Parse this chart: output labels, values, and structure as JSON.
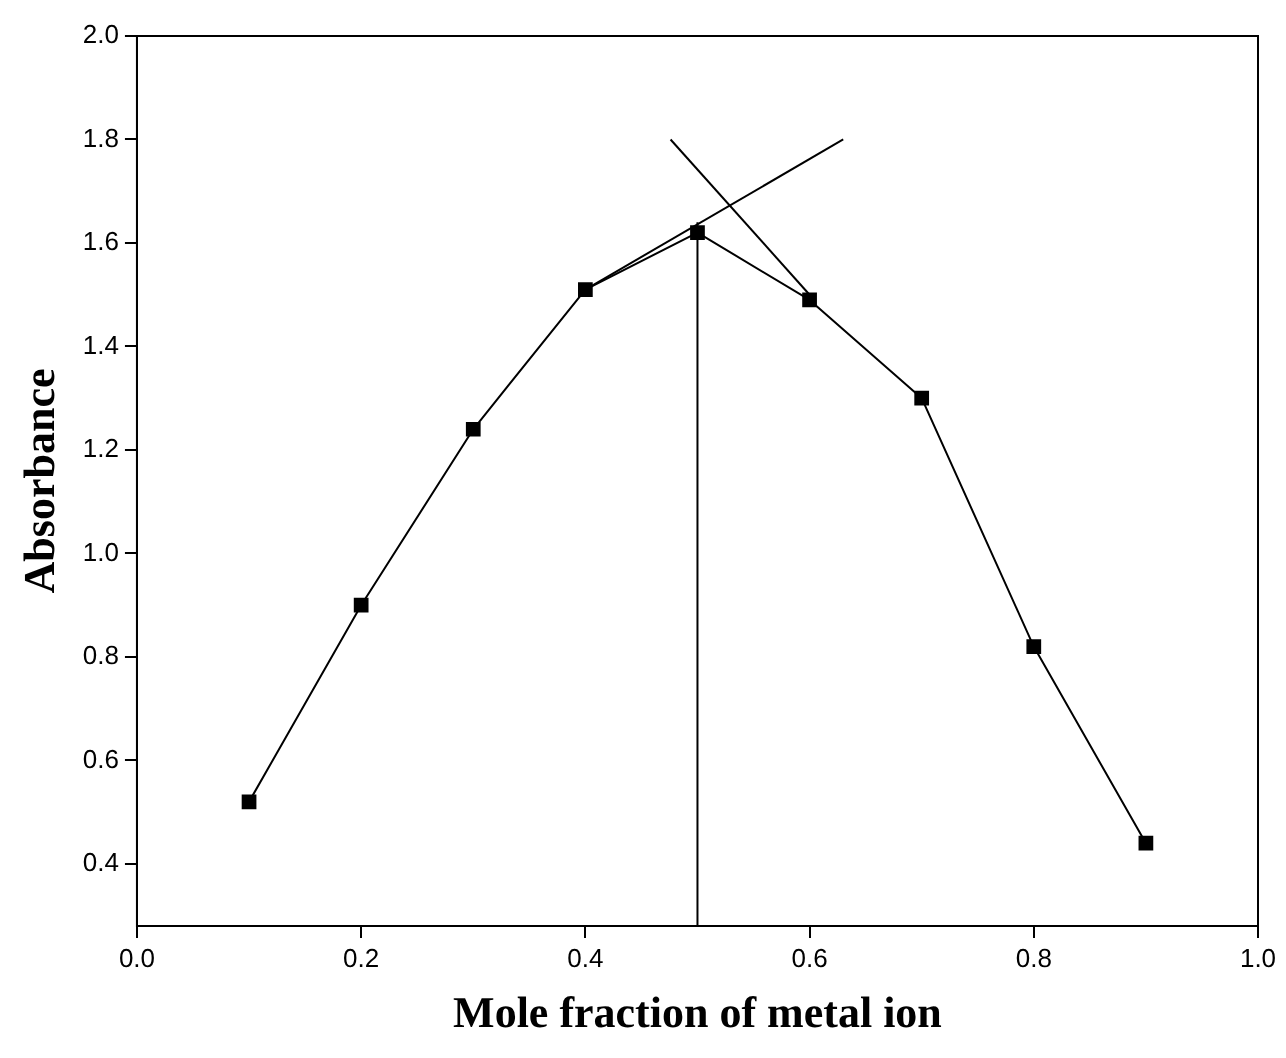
{
  "chart_data": {
    "type": "line",
    "xlabel": "Mole fraction of metal ion",
    "ylabel": "Absorbance",
    "xlim": [
      0,
      1
    ],
    "xticks": [
      {
        "value": 0,
        "label": "0.0"
      },
      0.2,
      0.4,
      0.6,
      0.8,
      {
        "value": 1,
        "label": "1.0"
      }
    ],
    "ylim": [
      0.28,
      2
    ],
    "yticks": [
      0.4,
      0.6,
      0.8,
      {
        "value": 1,
        "label": "1.0"
      },
      1.2,
      1.4,
      1.6,
      1.8,
      {
        "value": 2,
        "label": "2.0"
      }
    ],
    "grid": false,
    "legend": false,
    "marker": "square",
    "line_style": "solid",
    "series": [
      {
        "color": "#000000",
        "x": [
          0.1,
          0.2,
          0.3,
          0.4,
          0.5,
          0.6,
          0.7,
          0.8,
          0.9
        ],
        "values": [
          0.52,
          0.9,
          1.24,
          1.51,
          1.62,
          1.49,
          1.3,
          0.82,
          0.44
        ]
      },
      {
        "type": "line",
        "marker": "none",
        "color": "#000000",
        "x": [
          0.4,
          0.63
        ],
        "values": [
          1.51,
          1.8
        ]
      },
      {
        "type": "line",
        "marker": "none",
        "color": "#000000",
        "x": [
          0.476,
          0.6
        ],
        "values": [
          1.8,
          1.5
        ]
      },
      {
        "type": "line",
        "marker": "none",
        "color": "#000000",
        "x": [
          0.5,
          0.5
        ],
        "values": [
          0.28,
          1.64
        ]
      }
    ]
  }
}
